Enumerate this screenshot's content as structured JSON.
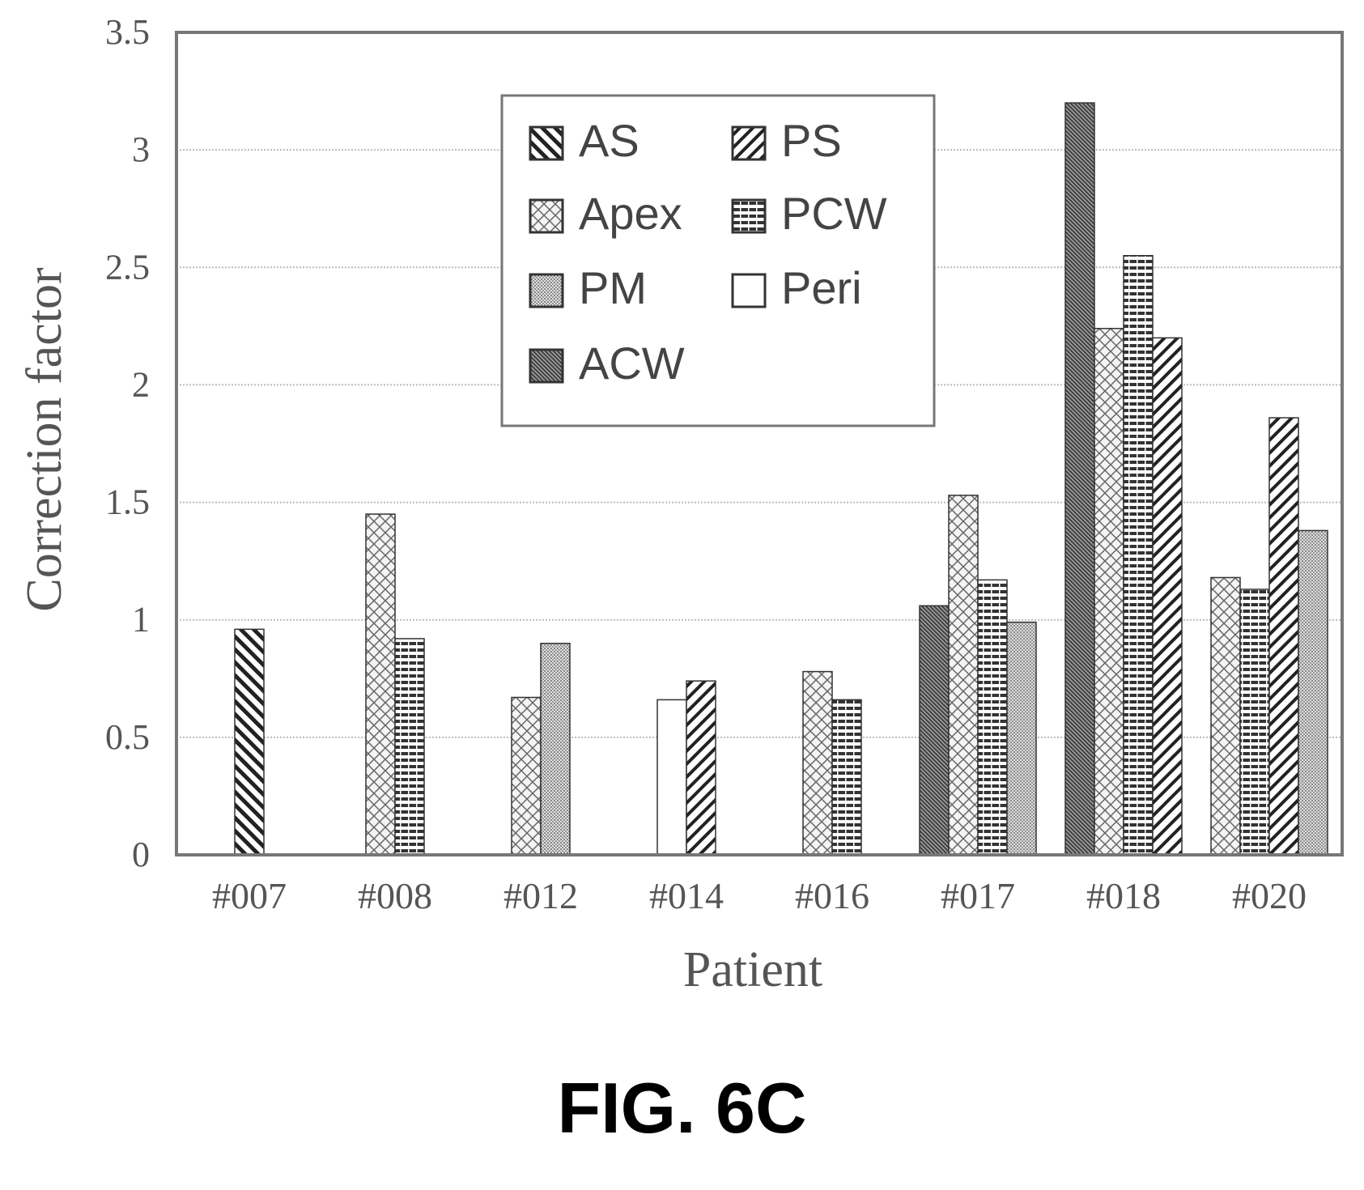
{
  "chart_data": {
    "type": "bar",
    "xlabel": "Patient",
    "ylabel": "Correction factor",
    "ylim": [
      0,
      3.5
    ],
    "yticks": [
      "0",
      "0.5",
      "1",
      "1.5",
      "2",
      "2.5",
      "3",
      "3.5"
    ],
    "grid": true,
    "legend_position": "top-center",
    "categories": [
      "#007",
      "#008",
      "#012",
      "#014",
      "#016",
      "#017",
      "#018",
      "#020"
    ],
    "series": [
      {
        "name": "AS",
        "pattern": "back-diagonal",
        "values": [
          0.96,
          null,
          null,
          null,
          null,
          null,
          null,
          null
        ]
      },
      {
        "name": "PS",
        "pattern": "forward-diagonal",
        "values": [
          null,
          null,
          null,
          0.74,
          null,
          null,
          2.2,
          1.86
        ]
      },
      {
        "name": "Apex",
        "pattern": "crosshatch",
        "values": [
          null,
          1.45,
          0.67,
          null,
          0.78,
          1.53,
          2.24,
          1.18
        ]
      },
      {
        "name": "PCW",
        "pattern": "horizontal",
        "values": [
          null,
          0.92,
          null,
          null,
          0.66,
          1.17,
          2.55,
          1.13
        ]
      },
      {
        "name": "PM",
        "pattern": "dots",
        "values": [
          null,
          null,
          0.9,
          null,
          null,
          0.99,
          null,
          1.38
        ]
      },
      {
        "name": "Peri",
        "pattern": "none",
        "values": [
          null,
          null,
          null,
          0.66,
          null,
          null,
          null,
          null
        ]
      },
      {
        "name": "ACW",
        "pattern": "dense-diagonal",
        "values": [
          null,
          null,
          null,
          null,
          null,
          1.06,
          3.2,
          null
        ]
      }
    ],
    "bar_order": [
      [
        "AS"
      ],
      [
        "Apex",
        "PCW"
      ],
      [
        "Apex",
        "PM"
      ],
      [
        "Peri",
        "PS"
      ],
      [
        "Apex",
        "PCW"
      ],
      [
        "ACW",
        "Apex",
        "PCW",
        "PM"
      ],
      [
        "ACW",
        "Apex",
        "PCW",
        "PS"
      ],
      [
        "Apex",
        "PCW",
        "PS",
        "PM"
      ]
    ],
    "colors": {
      "stroke": "#333333",
      "grid": "#bbbbbb",
      "text": "#555555"
    }
  },
  "figure": {
    "caption": "FIG. 6C"
  }
}
